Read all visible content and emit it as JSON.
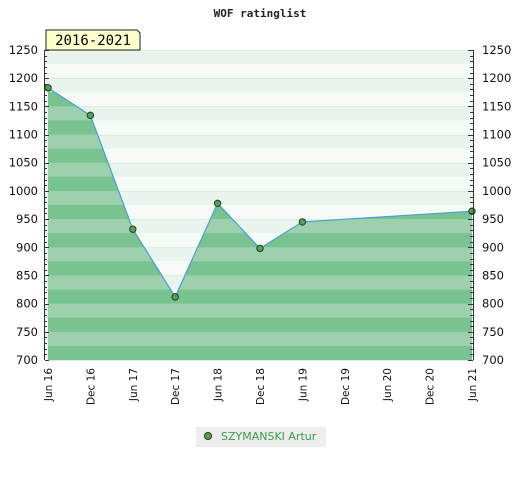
{
  "chart_data": {
    "type": "area",
    "title": "WOF ratinglist",
    "period_label": "2016-2021",
    "xlabel": "",
    "ylabel": "",
    "x_ticks": [
      "Jun 16",
      "Dec 16",
      "Jun 17",
      "Dec 17",
      "Jun 18",
      "Dec 18",
      "Jun 19",
      "Dec 19",
      "Jun 20",
      "Dec 20",
      "Jun 21"
    ],
    "y_ticks": [
      700,
      750,
      800,
      850,
      900,
      950,
      1000,
      1050,
      1100,
      1150,
      1200,
      1250
    ],
    "ylim": [
      700,
      1250
    ],
    "grid": true,
    "legend_position": "bottom",
    "series": [
      {
        "name": "SZYMANSKI Artur",
        "color": "#4a9fd5",
        "points": [
          {
            "x": "Jun 16",
            "y": 1183
          },
          {
            "x": "Dec 16",
            "y": 1134
          },
          {
            "x": "Jun 17",
            "y": 932
          },
          {
            "x": "Dec 17",
            "y": 812
          },
          {
            "x": "Jun 18",
            "y": 978
          },
          {
            "x": "Dec 18",
            "y": 898
          },
          {
            "x": "Jun 19",
            "y": 945
          },
          {
            "x": "Jun 21",
            "y": 964
          }
        ]
      }
    ]
  },
  "colors": {
    "area_fill": "#78c38f",
    "line": "#4a9fd5",
    "marker_fill": "#5a9e5a",
    "marker_stroke": "#1e3f1e",
    "legend_text": "#3a9a4a",
    "band_dark": "#9dd1ad",
    "band_light": "#e9f5ec",
    "period_box_bg": "#ffffcc"
  }
}
